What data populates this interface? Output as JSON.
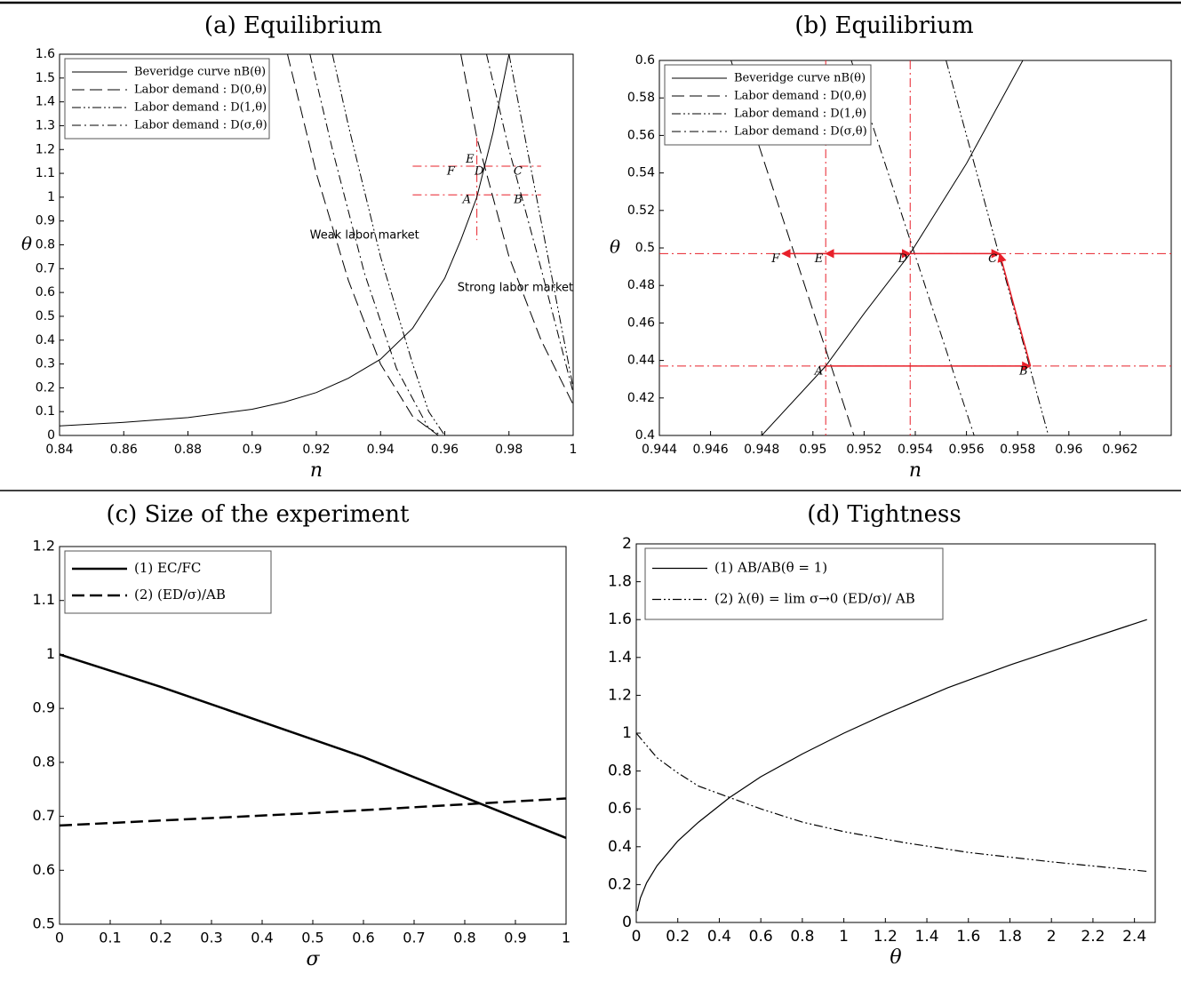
{
  "chart_data": [
    {
      "type": "line",
      "title": "(a) Equilibrium",
      "xlabel": "n",
      "ylabel": "θ",
      "xlim": [
        0.84,
        1
      ],
      "xticks": [
        0.84,
        0.86,
        0.88,
        0.9,
        0.92,
        0.94,
        0.96,
        0.98,
        1
      ],
      "ylim": [
        0,
        1.6
      ],
      "yticks": [
        0,
        0.1,
        0.2,
        0.3,
        0.4,
        0.5,
        0.6,
        0.7,
        0.8,
        0.9,
        1,
        1.1,
        1.2,
        1.3,
        1.4,
        1.5,
        1.6
      ],
      "series": [
        {
          "name": "Beveridge curve nB(θ)",
          "color": "#000000",
          "dash": "solid",
          "x": [
            0.84,
            0.86,
            0.88,
            0.9,
            0.91,
            0.92,
            0.93,
            0.94,
            0.95,
            0.96,
            0.965,
            0.97,
            0.975,
            0.98
          ],
          "values": [
            0.04,
            0.055,
            0.075,
            0.11,
            0.14,
            0.18,
            0.24,
            0.32,
            0.45,
            0.66,
            0.82,
            1.0,
            1.27,
            1.6
          ]
        },
        {
          "name": "Labor demand : D(0,θ)",
          "color": "#000000",
          "dash": "dashed",
          "x": [
            0.911,
            0.92,
            0.93,
            0.94,
            0.95,
            0.958,
            null,
            0.965,
            0.97,
            0.98,
            0.99,
            1.0
          ],
          "values": [
            1.6,
            1.1,
            0.65,
            0.3,
            0.08,
            0,
            null,
            1.6,
            1.25,
            0.75,
            0.4,
            0.13
          ]
        },
        {
          "name": "Labor demand : D(1,θ)",
          "color": "#000000",
          "dash": "dashdotdot",
          "x": [
            0.925,
            0.93,
            0.94,
            0.95,
            0.955,
            0.96,
            null,
            0.98,
            0.985,
            0.99,
            1.0
          ],
          "values": [
            1.6,
            1.3,
            0.75,
            0.3,
            0.1,
            0,
            null,
            1.6,
            1.25,
            0.9,
            0.2
          ]
        },
        {
          "name": "Labor demand : D(σ,θ)",
          "color": "#000000",
          "dash": "dashdot",
          "x": [
            0.918,
            0.925,
            0.935,
            0.945,
            0.955,
            0.959,
            null,
            0.973,
            0.98,
            0.99,
            1.0
          ],
          "values": [
            1.6,
            1.2,
            0.68,
            0.28,
            0.03,
            0,
            null,
            1.6,
            1.2,
            0.7,
            0.18
          ]
        }
      ],
      "hlines": [
        1.01,
        1.13
      ],
      "vlines": [
        0.97
      ],
      "refcolor": "#e8202a",
      "points": [
        {
          "label": "A",
          "x": 0.969,
          "y": 1.01
        },
        {
          "label": "B",
          "x": 0.985,
          "y": 1.01
        },
        {
          "label": "C",
          "x": 0.985,
          "y": 1.13
        },
        {
          "label": "D",
          "x": 0.973,
          "y": 1.13
        },
        {
          "label": "E",
          "x": 0.97,
          "y": 1.18
        },
        {
          "label": "F",
          "x": 0.964,
          "y": 1.13
        }
      ],
      "annotations": [
        {
          "text": "Weak labor market",
          "x": 0.935,
          "y": 0.84
        },
        {
          "text": "Strong labor market",
          "x": 0.982,
          "y": 0.62
        }
      ]
    },
    {
      "type": "line",
      "title": "(b) Equilibrium",
      "xlabel": "n",
      "ylabel": "θ",
      "xlim": [
        0.944,
        0.964
      ],
      "xticks": [
        0.944,
        0.946,
        0.948,
        0.95,
        0.952,
        0.954,
        0.956,
        0.958,
        0.96,
        0.962
      ],
      "ylim": [
        0.4,
        0.6
      ],
      "yticks": [
        0.4,
        0.42,
        0.44,
        0.46,
        0.48,
        0.5,
        0.52,
        0.54,
        0.56,
        0.58,
        0.6
      ],
      "series": [
        {
          "name": "Beveridge curve nB(θ)",
          "color": "#000000",
          "dash": "solid",
          "x": [
            0.948,
            0.9505,
            0.952,
            0.9538,
            0.956,
            0.9582
          ],
          "values": [
            0.4,
            0.437,
            0.465,
            0.497,
            0.545,
            0.6
          ]
        },
        {
          "name": "Labor demand : D(0,θ)",
          "color": "#000000",
          "dash": "dashed",
          "x": [
            0.9468,
            0.9516
          ],
          "values": [
            0.6,
            0.4
          ]
        },
        {
          "name": "Labor demand : D(1,θ)",
          "color": "#000000",
          "dash": "dashdotdot",
          "x": [
            0.9552,
            0.9592
          ],
          "values": [
            0.6,
            0.4
          ]
        },
        {
          "name": "Labor demand : D(σ,θ)",
          "color": "#000000",
          "dash": "dashdot",
          "x": [
            0.9515,
            0.9563
          ],
          "values": [
            0.6,
            0.4
          ]
        }
      ],
      "hlines": [
        0.497,
        0.437
      ],
      "vlines": [
        0.9505,
        0.9538
      ],
      "refcolor": "#e8202a",
      "points": [
        {
          "label": "A",
          "x": 0.9505,
          "y": 0.437
        },
        {
          "label": "B",
          "x": 0.9585,
          "y": 0.437
        },
        {
          "label": "C",
          "x": 0.9573,
          "y": 0.497
        },
        {
          "label": "D",
          "x": 0.9538,
          "y": 0.497
        },
        {
          "label": "E",
          "x": 0.9505,
          "y": 0.497
        },
        {
          "label": "F",
          "x": 0.9488,
          "y": 0.497
        }
      ]
    },
    {
      "type": "line",
      "title": "(c) Size of the experiment",
      "xlabel": "σ",
      "xlim": [
        0,
        1
      ],
      "xticks": [
        0,
        0.1,
        0.2,
        0.3,
        0.4,
        0.5,
        0.6,
        0.7,
        0.8,
        0.9,
        1
      ],
      "ylim": [
        0.5,
        1.2
      ],
      "yticks": [
        0.5,
        0.6,
        0.7,
        0.8,
        0.9,
        1,
        1.1,
        1.2
      ],
      "series": [
        {
          "name": "(1) EC/FC",
          "color": "#000000",
          "dash": "solid",
          "x": [
            0,
            0.2,
            0.4,
            0.6,
            0.8,
            1
          ],
          "values": [
            1,
            0.94,
            0.875,
            0.81,
            0.735,
            0.66
          ]
        },
        {
          "name": "(2) (ED/σ)/AB",
          "color": "#000000",
          "dash": "dashed",
          "x": [
            0,
            0.5,
            1
          ],
          "values": [
            0.683,
            0.706,
            0.733
          ]
        }
      ]
    },
    {
      "type": "line",
      "title": "(d) Tightness",
      "xlabel": "θ",
      "xlim": [
        0,
        2.5
      ],
      "xticks": [
        0,
        0.2,
        0.4,
        0.6,
        0.8,
        1,
        1.2,
        1.4,
        1.6,
        1.8,
        2,
        2.2,
        2.4
      ],
      "ylim": [
        0,
        2
      ],
      "yticks": [
        0,
        0.2,
        0.4,
        0.6,
        0.8,
        1,
        1.2,
        1.4,
        1.6,
        1.8,
        2
      ],
      "series": [
        {
          "name": "(1) AB/AB(θ = 1)",
          "color": "#000000",
          "dash": "solid",
          "x": [
            0.005,
            0.02,
            0.05,
            0.1,
            0.2,
            0.3,
            0.45,
            0.6,
            0.8,
            1,
            1.2,
            1.5,
            1.8,
            2.1,
            2.46
          ],
          "values": [
            0.06,
            0.13,
            0.21,
            0.3,
            0.43,
            0.53,
            0.66,
            0.77,
            0.89,
            1.0,
            1.1,
            1.24,
            1.36,
            1.47,
            1.6
          ]
        },
        {
          "name": "(2) λ(θ) = lim σ→0 (ED/σ)/ AB",
          "color": "#000000",
          "dash": "dashdotdot",
          "x": [
            0,
            0.1,
            0.2,
            0.3,
            0.45,
            0.6,
            0.8,
            1,
            1.3,
            1.6,
            2,
            2.46
          ],
          "values": [
            1,
            0.87,
            0.79,
            0.72,
            0.66,
            0.6,
            0.53,
            0.48,
            0.42,
            0.37,
            0.32,
            0.27
          ]
        }
      ]
    }
  ]
}
